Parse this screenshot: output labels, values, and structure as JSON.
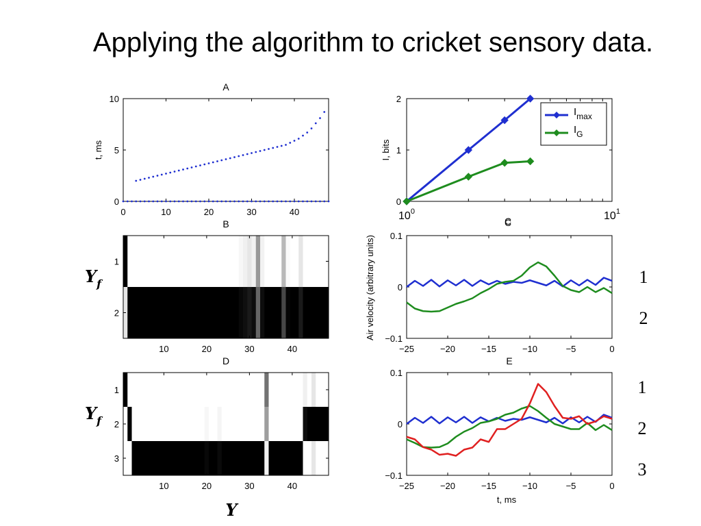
{
  "slide": {
    "title": "Applying the algorithm to cricket sensory data."
  },
  "chart_data": [
    {
      "id": "A",
      "type": "scatter",
      "title": "A",
      "ylabel": "t, ms",
      "xlim": [
        0,
        48
      ],
      "ylim": [
        0,
        10
      ],
      "xticks": [
        0,
        10,
        20,
        30,
        40
      ],
      "yticks": [
        0,
        5,
        10
      ],
      "color": "#1f2fd0",
      "series": [
        {
          "x": [
            3,
            4,
            5,
            6,
            7,
            8,
            9,
            10,
            11,
            12,
            13,
            14,
            15,
            16,
            17,
            18,
            19,
            20,
            21,
            22,
            23,
            24,
            25,
            26,
            27,
            28,
            29,
            30,
            31,
            32,
            33,
            34,
            35,
            36,
            37,
            38,
            39,
            40,
            41,
            42,
            43,
            44,
            45,
            46,
            47
          ],
          "y": [
            2.0,
            2.1,
            2.2,
            2.3,
            2.4,
            2.5,
            2.6,
            2.7,
            2.8,
            2.9,
            3.0,
            3.1,
            3.2,
            3.3,
            3.4,
            3.5,
            3.6,
            3.7,
            3.8,
            3.9,
            4.0,
            4.1,
            4.2,
            4.3,
            4.4,
            4.5,
            4.6,
            4.7,
            4.8,
            4.9,
            5.0,
            5.1,
            5.2,
            5.3,
            5.4,
            5.5,
            5.7,
            5.9,
            6.1,
            6.4,
            6.7,
            7.1,
            7.6,
            8.1,
            8.7
          ]
        },
        {
          "x": [
            0,
            1,
            2,
            3,
            4,
            5,
            6,
            7,
            8,
            9,
            10,
            11,
            12,
            13,
            14,
            15,
            16,
            17,
            18,
            19,
            20,
            21,
            22,
            23,
            24,
            25,
            26,
            27,
            28,
            29,
            30,
            31,
            32,
            33,
            34,
            35,
            36,
            37,
            38,
            39,
            40,
            41,
            42,
            43,
            44,
            45,
            46,
            47,
            48
          ],
          "y": [
            0,
            0,
            0,
            0,
            0,
            0,
            0,
            0,
            0,
            0,
            0,
            0,
            0,
            0,
            0,
            0,
            0,
            0,
            0,
            0,
            0,
            0,
            0,
            0,
            0,
            0,
            0,
            0,
            0,
            0,
            0,
            0,
            0,
            0,
            0,
            0,
            0,
            0,
            0,
            0,
            0,
            0,
            0,
            0,
            0,
            0,
            0,
            0,
            0
          ]
        }
      ]
    },
    {
      "id": "N",
      "type": "line",
      "title": "C",
      "ylabel": "I, bits",
      "xscale": "log",
      "xlim": [
        1,
        10
      ],
      "ylim": [
        0,
        2
      ],
      "yticks": [
        0,
        1,
        2
      ],
      "xtick_labels": [
        {
          "value": 1,
          "base": "10",
          "exp": "0"
        },
        {
          "value": 10,
          "base": "10",
          "exp": "1"
        }
      ],
      "legend": "top-right",
      "series": [
        {
          "name": "I",
          "sub": "max",
          "color": "#1f2fd0",
          "x": [
            1,
            2,
            3,
            4
          ],
          "y": [
            0,
            1.0,
            1.58,
            2.0
          ]
        },
        {
          "name": "I",
          "sub": "G",
          "color": "#1e8c1e",
          "x": [
            1,
            2,
            3,
            4
          ],
          "y": [
            0,
            0.48,
            0.75,
            0.78
          ]
        }
      ]
    },
    {
      "id": "B",
      "type": "heatmap",
      "title": "B",
      "row_labels": [
        "1",
        "2"
      ],
      "xticks": [
        10,
        20,
        30,
        40
      ],
      "n_cols": 48,
      "values": [
        [
          0.0,
          1,
          1,
          1,
          1,
          1,
          1,
          1,
          1,
          1,
          1,
          1,
          1,
          1,
          1,
          1,
          1,
          1,
          1,
          1,
          1,
          1,
          1,
          1,
          1,
          1,
          1,
          0.97,
          0.94,
          0.9,
          0.95,
          0.6,
          0.95,
          1,
          1,
          1,
          1,
          0.72,
          0.98,
          1,
          1,
          0.9,
          1,
          1,
          1,
          1,
          1,
          1
        ],
        [
          0.9,
          0.0,
          0,
          0,
          0,
          0,
          0,
          0,
          0,
          0,
          0,
          0,
          0,
          0,
          0,
          0,
          0,
          0,
          0,
          0,
          0,
          0,
          0,
          0,
          0,
          0,
          0,
          0.03,
          0.06,
          0.1,
          0.05,
          0.4,
          0.05,
          0,
          0,
          0,
          0,
          0.28,
          0.02,
          0,
          0,
          0.1,
          0,
          0,
          0,
          0,
          0,
          0
        ]
      ]
    },
    {
      "id": "C",
      "type": "line",
      "title": "C",
      "xlim": [
        -25,
        0
      ],
      "ylim": [
        -0.1,
        0.1
      ],
      "xticks": [
        -25,
        -20,
        -15,
        -10,
        -5,
        0
      ],
      "yticks": [
        -0.1,
        0,
        0.1
      ],
      "series": [
        {
          "color": "#1f2fd0",
          "x": [
            -25,
            -24,
            -23,
            -22,
            -21,
            -20,
            -19,
            -18,
            -17,
            -16,
            -15,
            -14,
            -13,
            -12,
            -11,
            -10,
            -9,
            -8,
            -7,
            -6,
            -5,
            -4,
            -3,
            -2,
            -1,
            0
          ],
          "y": [
            0.0,
            0.012,
            0.002,
            0.014,
            0.001,
            0.013,
            0.003,
            0.014,
            0.002,
            0.013,
            0.005,
            0.012,
            0.006,
            0.01,
            0.008,
            0.013,
            0.008,
            0.003,
            0.012,
            0.001,
            0.013,
            0.003,
            0.014,
            0.004,
            0.018,
            0.012
          ]
        },
        {
          "color": "#1e8c1e",
          "x": [
            -25,
            -24,
            -23,
            -22,
            -21,
            -20,
            -19,
            -18,
            -17,
            -16,
            -15,
            -14,
            -13,
            -12,
            -11,
            -10,
            -9,
            -8,
            -7,
            -6,
            -5,
            -4,
            -3,
            -2,
            -1,
            0
          ],
          "y": [
            -0.03,
            -0.042,
            -0.047,
            -0.048,
            -0.047,
            -0.04,
            -0.033,
            -0.028,
            -0.022,
            -0.012,
            -0.004,
            0.006,
            0.01,
            0.012,
            0.022,
            0.038,
            0.048,
            0.04,
            0.022,
            0.002,
            -0.006,
            -0.01,
            0.0,
            -0.01,
            -0.002,
            -0.012
          ]
        }
      ]
    },
    {
      "id": "D",
      "type": "heatmap",
      "title": "D",
      "row_labels": [
        "1",
        "2",
        "3"
      ],
      "xticks": [
        10,
        20,
        30,
        40
      ],
      "n_cols": 48,
      "values": [
        [
          0.0,
          1,
          1,
          1,
          1,
          1,
          1,
          1,
          1,
          1,
          1,
          1,
          1,
          1,
          1,
          1,
          1,
          1,
          1,
          1,
          1,
          1,
          1,
          1,
          1,
          1,
          1,
          1,
          1,
          1,
          1,
          1,
          1,
          0.45,
          1,
          1,
          1,
          1,
          1,
          1,
          1,
          1,
          0.94,
          1,
          0.9,
          1,
          1,
          1
        ],
        [
          1,
          0.0,
          1,
          1,
          1,
          1,
          1,
          1,
          1,
          1,
          1,
          1,
          1,
          1,
          1,
          1,
          1,
          1,
          1,
          0.97,
          1,
          1,
          0.96,
          1,
          1,
          1,
          1,
          1,
          1,
          1,
          1,
          1,
          1,
          0.62,
          1,
          1,
          1,
          1,
          1,
          1,
          1,
          1,
          0.05,
          0.0,
          0,
          0,
          0,
          0
        ],
        [
          1,
          1,
          0.0,
          0,
          0,
          0,
          0,
          0,
          0,
          0,
          0,
          0,
          0,
          0,
          0,
          0,
          0,
          0,
          0,
          0.03,
          0,
          0,
          0.04,
          0,
          0,
          0,
          0,
          0,
          0,
          0,
          0,
          0,
          0,
          0.95,
          0,
          0,
          0,
          0,
          0,
          0,
          0,
          0,
          1,
          1,
          0.9,
          1,
          1,
          1
        ]
      ]
    },
    {
      "id": "E",
      "type": "line",
      "title": "E",
      "xlabel": "t, ms",
      "xlim": [
        -25,
        0
      ],
      "ylim": [
        -0.1,
        0.1
      ],
      "xticks": [
        -25,
        -20,
        -15,
        -10,
        -5,
        0
      ],
      "yticks": [
        -0.1,
        0,
        0.1
      ],
      "series": [
        {
          "color": "#1f2fd0",
          "x": [
            -25,
            -24,
            -23,
            -22,
            -21,
            -20,
            -19,
            -18,
            -17,
            -16,
            -15,
            -14,
            -13,
            -12,
            -11,
            -10,
            -9,
            -8,
            -7,
            -6,
            -5,
            -4,
            -3,
            -2,
            -1,
            0
          ],
          "y": [
            0.0,
            0.012,
            0.002,
            0.014,
            0.001,
            0.013,
            0.003,
            0.014,
            0.002,
            0.013,
            0.005,
            0.012,
            0.006,
            0.01,
            0.008,
            0.013,
            0.008,
            0.003,
            0.012,
            0.001,
            0.013,
            0.003,
            0.014,
            0.004,
            0.018,
            0.012
          ]
        },
        {
          "color": "#1e8c1e",
          "x": [
            -25,
            -24,
            -23,
            -22,
            -21,
            -20,
            -19,
            -18,
            -17,
            -16,
            -15,
            -14,
            -13,
            -12,
            -11,
            -10,
            -9,
            -8,
            -7,
            -6,
            -5,
            -4,
            -3,
            -2,
            -1,
            0
          ],
          "y": [
            -0.03,
            -0.037,
            -0.045,
            -0.046,
            -0.045,
            -0.038,
            -0.025,
            -0.015,
            -0.008,
            0.002,
            0.005,
            0.01,
            0.018,
            0.022,
            0.03,
            0.035,
            0.025,
            0.012,
            0.0,
            -0.005,
            -0.01,
            -0.01,
            0.002,
            -0.012,
            -0.002,
            -0.012
          ]
        },
        {
          "color": "#e02020",
          "x": [
            -25,
            -24,
            -23,
            -22,
            -21,
            -20,
            -19,
            -18,
            -17,
            -16,
            -15,
            -14,
            -13,
            -12,
            -11,
            -10,
            -9,
            -8,
            -7,
            -6,
            -5,
            -4,
            -3,
            -2,
            -1,
            0
          ],
          "y": [
            -0.025,
            -0.03,
            -0.045,
            -0.05,
            -0.06,
            -0.058,
            -0.062,
            -0.05,
            -0.046,
            -0.03,
            -0.035,
            -0.01,
            -0.01,
            0.0,
            0.01,
            0.04,
            0.078,
            0.062,
            0.035,
            0.012,
            0.01,
            0.015,
            0.0,
            0.005,
            0.015,
            0.01
          ]
        }
      ]
    }
  ],
  "shared_labels": {
    "center_ylabel": "Air velocity (arbitrary units)",
    "yf_label_1": "Y",
    "yf_sub_1": "f",
    "yf_label_2": "Y",
    "yf_sub_2": "f",
    "bottom_xlabel": "Y",
    "side_numbers_C": [
      "1",
      "2"
    ],
    "side_numbers_E": [
      "1",
      "2",
      "3"
    ]
  }
}
